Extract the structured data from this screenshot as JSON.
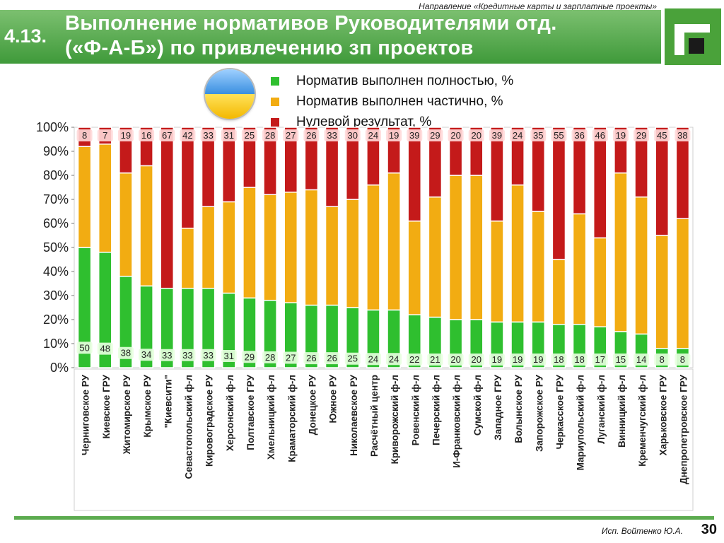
{
  "header": {
    "top_note": "Направление «Кредитные карты и зарплатные проекты»",
    "section_number": "4.13.",
    "title_line1": "Выполнение нормативов Руководителями отд.",
    "title_line2": "(«Ф-А-Б»)  по привлечению зп проектов"
  },
  "legend": {
    "items": [
      {
        "label": "Норматив выполнен полностью, %",
        "color": "#2fbf2f"
      },
      {
        "label": "Норматив выполнен частично, %",
        "color": "#f2ac12"
      },
      {
        "label": "Нулевой результат, %",
        "color": "#c41a1a"
      }
    ]
  },
  "footer": {
    "author": "Исп.  Войтенко Ю.А.",
    "page_number": "30"
  },
  "chart_data": {
    "type": "bar",
    "stacked": true,
    "ylim": [
      0,
      100
    ],
    "y_ticks": [
      "0%",
      "10%",
      "20%",
      "30%",
      "40%",
      "50%",
      "60%",
      "70%",
      "80%",
      "90%",
      "100%"
    ],
    "categories": [
      "Черниговское РУ",
      "Киевское ГРУ",
      "Житомирское РУ",
      "Крымское РУ",
      "\"Киевсити\"",
      "Севастопольский ф-л",
      "Кировоградское РУ",
      "Херсонский ф-л",
      "Полтавское ГРУ",
      "Хмельницкий ф-л",
      "Краматорский ф-л",
      "Донецкое РУ",
      "Южное РУ",
      "Николаевское РУ",
      "Расчётный центр",
      "Криворожский ф-л",
      "Ровенский ф-л",
      "Печерский ф-л",
      "И-Франковский ф-л",
      "Сумской ф-л",
      "Западное ГРУ",
      "Волынское РУ",
      "Запорожское РУ",
      "Черкасское ГРУ",
      "Мариупольский ф-л",
      "Луганский ф-л",
      "Винницкий ф-л",
      "Кременчугский ф-л",
      "Харьковское ГРУ",
      "Днепропетровское ГРУ"
    ],
    "series": [
      {
        "name": "Норматив выполнен полностью, %",
        "color": "#2fbf2f",
        "values": [
          50,
          48,
          38,
          34,
          33,
          33,
          33,
          31,
          29,
          28,
          27,
          26,
          26,
          25,
          24,
          24,
          22,
          21,
          20,
          20,
          19,
          19,
          19,
          18,
          18,
          17,
          15,
          14,
          8,
          8
        ]
      },
      {
        "name": "Норматив выполнен частично, %",
        "color": "#f2ac12",
        "values": [
          42,
          45,
          43,
          50,
          0,
          25,
          34,
          38,
          46,
          44,
          46,
          48,
          41,
          45,
          52,
          57,
          39,
          50,
          60,
          60,
          42,
          57,
          46,
          27,
          46,
          37,
          66,
          57,
          47,
          54
        ]
      },
      {
        "name": "Нулевой результат, %",
        "color": "#c41a1a",
        "values": [
          8,
          7,
          19,
          16,
          67,
          42,
          33,
          31,
          25,
          28,
          27,
          26,
          33,
          30,
          24,
          19,
          39,
          29,
          20,
          20,
          39,
          24,
          35,
          55,
          36,
          46,
          19,
          29,
          45,
          38
        ]
      }
    ]
  }
}
